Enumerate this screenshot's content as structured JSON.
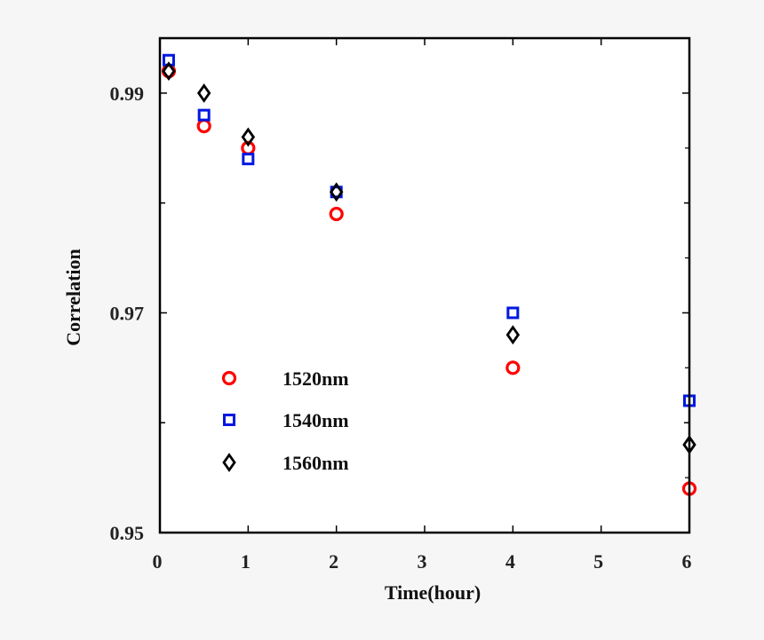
{
  "chart_data": {
    "type": "scatter",
    "title": "",
    "xlabel": "Time(hour)",
    "ylabel": "Correlation",
    "xlim": [
      0,
      6
    ],
    "ylim": [
      0.95,
      0.995
    ],
    "xticks": [
      0,
      1,
      2,
      3,
      4,
      5,
      6
    ],
    "yticks_labeled": [
      0.95,
      0.97,
      0.99
    ],
    "yticks_minor": [
      0.96,
      0.98
    ],
    "grid": false,
    "legend_position": "lower-left inside plot",
    "series": [
      {
        "name": "1520nm",
        "marker": "circle",
        "color": "#ff0000",
        "x": [
          0.1,
          0.5,
          1,
          2,
          4,
          6
        ],
        "y": [
          0.992,
          0.987,
          0.985,
          0.979,
          0.965,
          0.954
        ]
      },
      {
        "name": "1540nm",
        "marker": "square",
        "color": "#0018e0",
        "x": [
          0.1,
          0.5,
          1,
          2,
          4,
          6
        ],
        "y": [
          0.993,
          0.988,
          0.984,
          0.981,
          0.97,
          0.962
        ]
      },
      {
        "name": "1560nm",
        "marker": "diamond",
        "color": "#000000",
        "x": [
          0.1,
          0.5,
          1,
          2,
          4,
          6
        ],
        "y": [
          0.992,
          0.99,
          0.986,
          0.981,
          0.968,
          0.958
        ]
      }
    ]
  }
}
